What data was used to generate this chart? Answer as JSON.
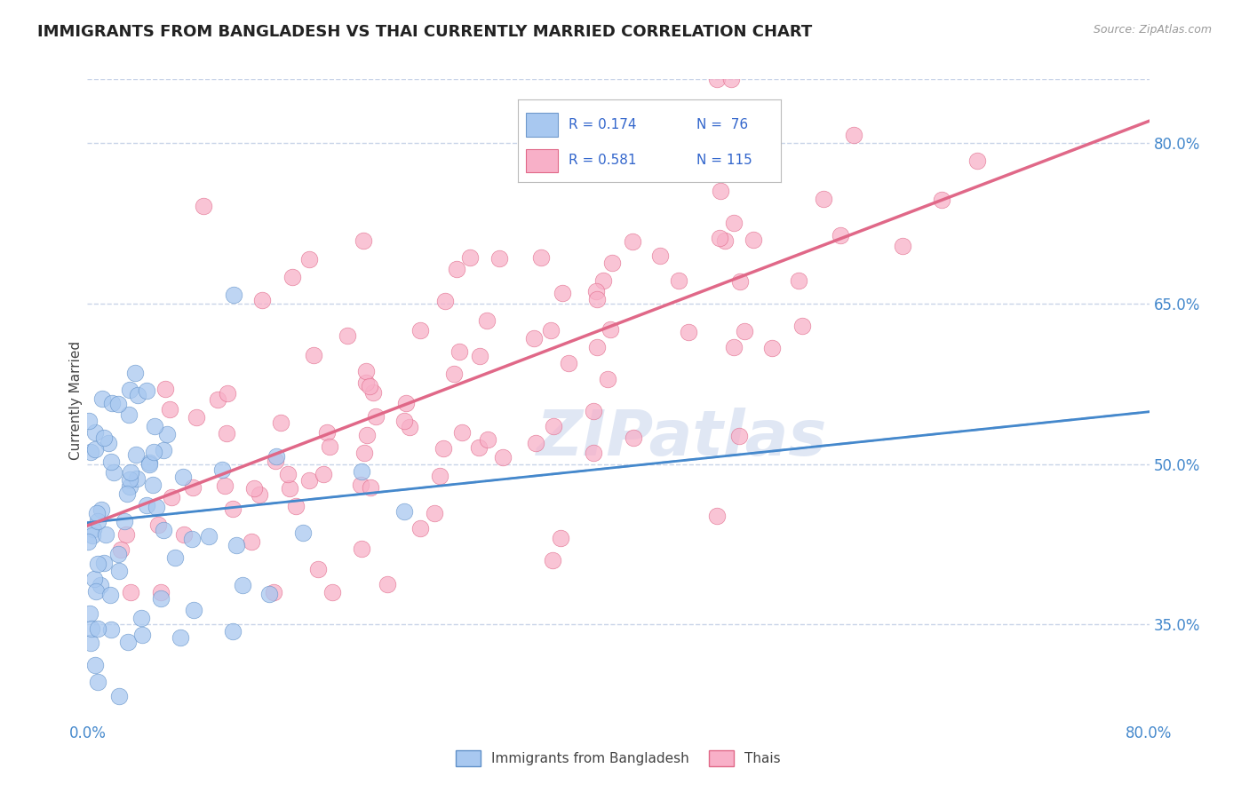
{
  "title": "IMMIGRANTS FROM BANGLADESH VS THAI CURRENTLY MARRIED CORRELATION CHART",
  "source": "Source: ZipAtlas.com",
  "ylabel": "Currently Married",
  "x_min": 0.0,
  "x_max": 0.8,
  "y_min": 0.26,
  "y_max": 0.86,
  "y_ticks": [
    0.35,
    0.5,
    0.65,
    0.8
  ],
  "y_tick_labels": [
    "35.0%",
    "50.0%",
    "65.0%",
    "80.0%"
  ],
  "x_ticks": [
    0.0,
    0.8
  ],
  "x_tick_labels": [
    "0.0%",
    "80.0%"
  ],
  "series": [
    {
      "name": "Immigrants from Bangladesh",
      "color": "#a8c8f0",
      "edge_color": "#6090c8",
      "R": 0.174,
      "N": 76,
      "line_color": "#4488cc",
      "line_style": "-"
    },
    {
      "name": "Thais",
      "color": "#f8b0c8",
      "edge_color": "#e06888",
      "R": 0.581,
      "N": 115,
      "line_color": "#e06888",
      "line_style": "-"
    }
  ],
  "dashed_line_color": "#aabbdd",
  "watermark_text": "ZIPatlas",
  "watermark_color": "#ccd8ee",
  "background_color": "#ffffff",
  "grid_color": "#c8d4e8",
  "title_fontsize": 13,
  "axis_label_fontsize": 11,
  "tick_fontsize": 12,
  "tick_color": "#4488cc",
  "legend_r1": "R = 0.174",
  "legend_n1": "N =  76",
  "legend_r2": "R = 0.581",
  "legend_n2": "N = 115",
  "legend_color1": "#a8c8f0",
  "legend_color2": "#f8b0c8",
  "legend_text_color": "#3366cc"
}
